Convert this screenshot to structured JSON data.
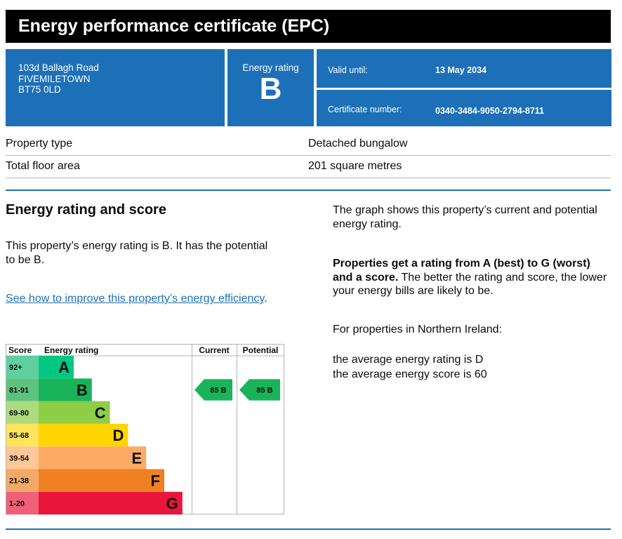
{
  "header": {
    "title": "Energy performance certificate (EPC)"
  },
  "address": {
    "line1": "103d Ballagh Road",
    "line2": "FIVEMILETOWN",
    "line3": "BT75 0LD"
  },
  "rating_box": {
    "label": "Energy rating",
    "value": "B"
  },
  "validity": {
    "label": "Valid until:",
    "value": "13 May 2034"
  },
  "certificate": {
    "label": "Certificate number:",
    "value": "0340-3484-9050-2794-8711"
  },
  "property": {
    "type_label": "Property type",
    "type_value": "Detached bungalow",
    "area_label": "Total floor area",
    "area_value": "201 square metres"
  },
  "section": {
    "heading": "Energy rating and score",
    "intro": "This property’s energy rating is B. It has the potential to be B.",
    "link_text": "See how to improve this property’s energy efficiency",
    "link_suffix": ".",
    "graph_note": "The graph shows this property’s current and potential energy rating.",
    "ratings_bold": "Properties get a rating from A (best) to G (worst) and a score.",
    "ratings_rest": " The better the rating and score, the lower your energy bills are likely to be.",
    "ni_label": "For properties in Northern Ireland:",
    "avg_rating": "the average energy rating is D",
    "avg_score": "the average energy score is 60"
  },
  "chart_data": {
    "type": "table",
    "headers": [
      "Score",
      "Energy rating",
      "Current",
      "Potential"
    ],
    "bands": [
      {
        "score": "92+",
        "letter": "A",
        "color": "#00c781",
        "label_color": "#5fcf9f"
      },
      {
        "score": "81-91",
        "letter": "B",
        "color": "#19b459",
        "label_color": "#5ec27f"
      },
      {
        "score": "69-80",
        "letter": "C",
        "color": "#8dce46",
        "label_color": "#aedb80"
      },
      {
        "score": "55-68",
        "letter": "D",
        "color": "#ffd500",
        "label_color": "#ffe45a"
      },
      {
        "score": "39-54",
        "letter": "E",
        "color": "#fcaa65",
        "label_color": "#fdc797"
      },
      {
        "score": "21-38",
        "letter": "F",
        "color": "#ef8023",
        "label_color": "#f4a866"
      },
      {
        "score": "1-20",
        "letter": "G",
        "color": "#e9153b",
        "label_color": "#ef6078"
      }
    ],
    "current": {
      "score": 85,
      "band": "B",
      "text": "85  B",
      "color": "#19b459"
    },
    "potential": {
      "score": 85,
      "band": "B",
      "text": "85  B",
      "color": "#19b459"
    }
  }
}
